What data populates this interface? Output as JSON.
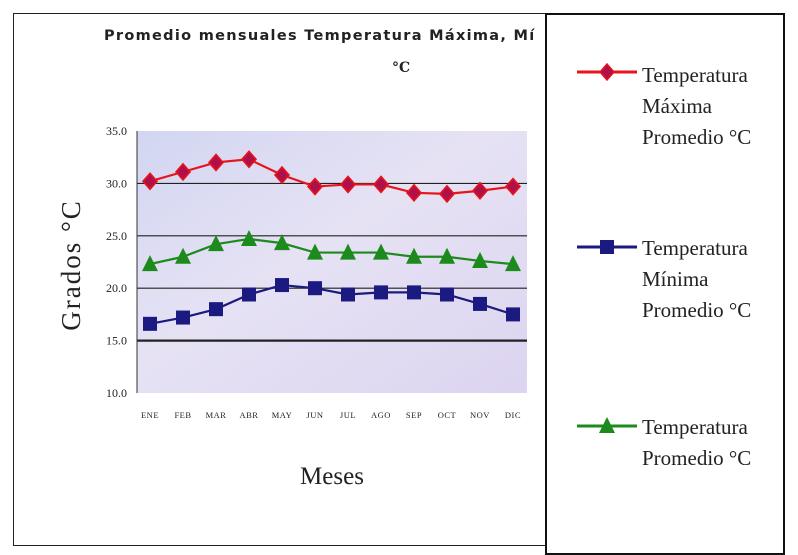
{
  "chart_data": {
    "type": "line",
    "title": "Promedio mensuales Temperatura Máxima, Mí",
    "subtitle": "°C",
    "xlabel": "Meses",
    "ylabel": "Grados °C",
    "ylim": [
      10,
      35
    ],
    "yticks": [
      "10.0",
      "15.0",
      "20.0",
      "25.0",
      "30.0",
      "35.0"
    ],
    "categories": [
      "ENE",
      "FEB",
      "MAR",
      "ABR",
      "MAY",
      "JUN",
      "JUL",
      "AGO",
      "SEP",
      "OCT",
      "NOV",
      "DIC"
    ],
    "grid": true,
    "legend_position": "right",
    "series": [
      {
        "name": "Temperatura Máxima Promedio °C",
        "color": "#e8141c",
        "marker_color": "#b0104a",
        "marker": "diamond",
        "values": [
          30.2,
          31.1,
          32.0,
          32.3,
          30.8,
          29.7,
          29.9,
          29.9,
          29.1,
          29.0,
          29.3,
          29.7
        ]
      },
      {
        "name": "Temperatura Mínima Promedio °C",
        "color": "#1a1a80",
        "marker_color": "#1a1a80",
        "marker": "square",
        "values": [
          16.6,
          17.2,
          18.0,
          19.4,
          20.3,
          20.0,
          19.4,
          19.6,
          19.6,
          19.4,
          18.5,
          17.5
        ]
      },
      {
        "name": "Temperatura Promedio °C",
        "color": "#1c8a1c",
        "marker_color": "#1c8a1c",
        "marker": "triangle",
        "values": [
          22.3,
          23.0,
          24.2,
          24.7,
          24.3,
          23.4,
          23.4,
          23.4,
          23.0,
          23.0,
          22.6,
          22.3
        ]
      }
    ]
  },
  "legend": {
    "items": [
      {
        "label": "Temperatura\nMáxima\nPromedio °C"
      },
      {
        "label": "Temperatura\nMínima\nPromedio °C"
      },
      {
        "label": "Temperatura\nPromedio °C"
      }
    ]
  }
}
